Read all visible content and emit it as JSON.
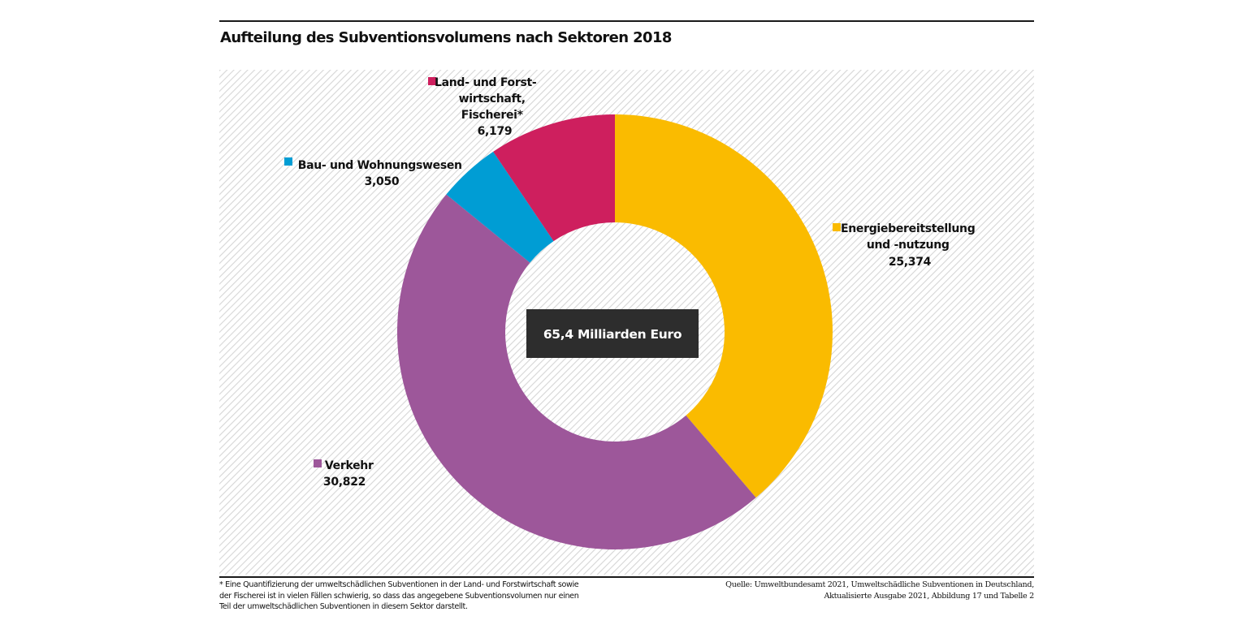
{
  "chart_data": {
    "type": "pie",
    "variant": "donut",
    "title": "Aufteilung des Subventionsvolumens nach Sektoren 2018",
    "center_label": "65,4 Milliarden Euro",
    "unit": "Milliarden Euro",
    "total": 65.425,
    "start": "top",
    "direction": "clockwise",
    "slices": [
      {
        "name": "Energiebereitstellung und -nutzung",
        "label_lines": [
          "Energiebereitstellung",
          "und -nutzung"
        ],
        "value": 25.374,
        "value_label": "25,374",
        "color": "#FABB00"
      },
      {
        "name": "Verkehr",
        "label_lines": [
          "Verkehr"
        ],
        "value": 30.822,
        "value_label": "30,822",
        "color": "#9D579A"
      },
      {
        "name": "Bau- und Wohnungswesen",
        "label_lines": [
          "Bau- und Wohnungswesen"
        ],
        "value": 3.05,
        "value_label": "3,050",
        "color": "#009DD4"
      },
      {
        "name": "Land- und Forstwirtschaft, Fischerei*",
        "label_lines": [
          "Land- und Forst-",
          "wirtschaft,",
          "Fischerei*"
        ],
        "value": 6.179,
        "value_label": "6,179",
        "color": "#CE1F5E"
      }
    ],
    "legend": "inline-labels"
  },
  "colors": {
    "center_box": "#2D2D2D",
    "rules": "#1A1A1A",
    "hatch": "#D6D6D6"
  },
  "footnote": {
    "lines": [
      "* Eine Quantifizierung der umweltschädlichen Subventionen in der Land- und Forstwirtschaft sowie",
      "der Fischerei ist in vielen Fällen schwierig, so dass das angegebene Subventionsvolumen nur einen",
      "Teil der umweltschädlichen Subventionen in diesem Sektor darstellt."
    ]
  },
  "source": {
    "lines": [
      "Quelle: Umweltbundesamt 2021, Umweltschädliche Subventionen in Deutschland,",
      "Aktualisierte Ausgabe 2021, Abbildung 17 und Tabelle 2"
    ]
  }
}
